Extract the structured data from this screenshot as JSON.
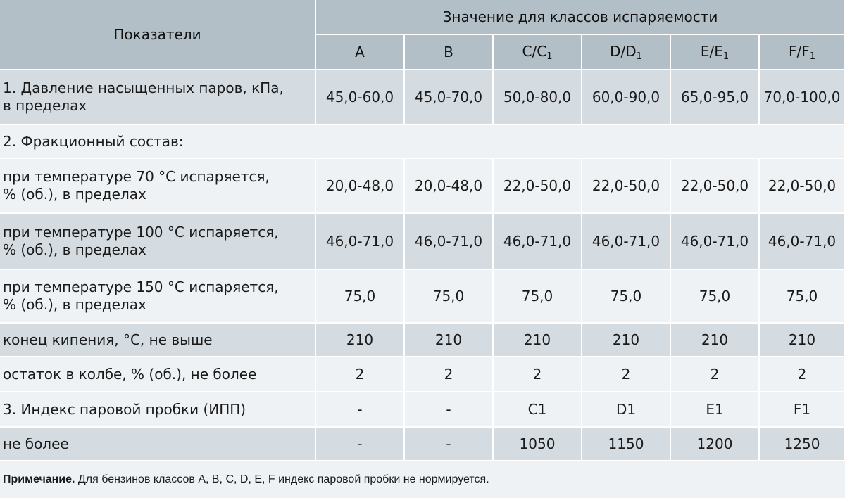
{
  "header": {
    "indicators": "Показатели",
    "group_title": "Значение для классов испаряемости",
    "classes": [
      {
        "main": "A",
        "sub": ""
      },
      {
        "main": "B",
        "sub": ""
      },
      {
        "main": "C/C",
        "sub": "1"
      },
      {
        "main": "D/D",
        "sub": "1"
      },
      {
        "main": "E/E",
        "sub": "1"
      },
      {
        "main": "F/F",
        "sub": "1"
      }
    ]
  },
  "rows": [
    {
      "label1": "1. Давление насыщенных паров, кПа,",
      "label2": "в пределах",
      "values": [
        "45,0-60,0",
        "45,0-70,0",
        "50,0-80,0",
        "60,0-90,0",
        "65,0-95,0",
        "70,0-100,0"
      ]
    },
    {
      "label1": "2. Фракционный состав:",
      "label2": "",
      "values": []
    },
    {
      "label1": "при температуре 70 °С испаряется,",
      "label2": "% (об.), в пределах",
      "values": [
        "20,0-48,0",
        "20,0-48,0",
        "22,0-50,0",
        "22,0-50,0",
        "22,0-50,0",
        "22,0-50,0"
      ]
    },
    {
      "label1": "при температуре 100 °С испаряется,",
      "label2": "% (об.), в пределах",
      "values": [
        "46,0-71,0",
        "46,0-71,0",
        "46,0-71,0",
        "46,0-71,0",
        "46,0-71,0",
        "46,0-71,0"
      ]
    },
    {
      "label1": "при температуре 150 °С испаряется,",
      "label2": "% (об.), в пределах",
      "values": [
        "75,0",
        "75,0",
        "75,0",
        "75,0",
        "75,0",
        "75,0"
      ]
    },
    {
      "label1": "конец кипения, °С, не выше",
      "label2": "",
      "values": [
        "210",
        "210",
        "210",
        "210",
        "210",
        "210"
      ]
    },
    {
      "label1": "остаток в колбе, % (об.), не более",
      "label2": "",
      "values": [
        "2",
        "2",
        "2",
        "2",
        "2",
        "2"
      ]
    },
    {
      "label1": "3. Индекс паровой пробки (ИПП)",
      "label2": "",
      "values": [
        "-",
        "-",
        "C1",
        "D1",
        "E1",
        "F1"
      ]
    },
    {
      "label1": "не более",
      "label2": "",
      "values": [
        "-",
        "-",
        "1050",
        "1150",
        "1200",
        "1250"
      ]
    }
  ],
  "note": {
    "prefix": "Примечание.",
    "text": " Для бензинов классов А, В, С, D, Е, F индекс паровой пробки не нормируется."
  }
}
